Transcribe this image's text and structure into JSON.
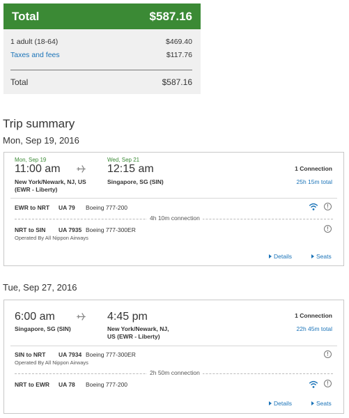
{
  "price": {
    "total_label": "Total",
    "total_amount": "$587.16",
    "passenger_label": "1 adult (18-64)",
    "passenger_amount": "$469.40",
    "taxes_label": "Taxes and fees",
    "taxes_amount": "$117.76",
    "summary_total_label": "Total",
    "summary_total_amount": "$587.16"
  },
  "trip_title": "Trip summary",
  "outbound": {
    "date_heading": "Mon, Sep 19, 2016",
    "depart_date": "Mon, Sep 19",
    "depart_time": "11:00 am",
    "depart_place1": "New York/Newark, NJ, US",
    "depart_place2": "(EWR - Liberty)",
    "arrive_date": "Wed, Sep 21",
    "arrive_time": "12:15 am",
    "arrive_place1": "Singapore, SG (SIN)",
    "connections": "1 Connection",
    "total_time": "25h 15m total",
    "segments": [
      {
        "route": "EWR to NRT",
        "flight": "UA 79",
        "aircraft": "Boeing 777-200",
        "operated": ""
      },
      {
        "route": "NRT to SIN",
        "flight": "UA 7935",
        "aircraft": "Boeing 777-300ER",
        "operated": "Operated By All Nippon Airways"
      }
    ],
    "layover": "4h 10m connection",
    "details_label": "Details",
    "seats_label": "Seats"
  },
  "return": {
    "date_heading": "Tue, Sep 27, 2016",
    "depart_time": "6:00 am",
    "depart_place1": "Singapore, SG (SIN)",
    "arrive_time": "4:45 pm",
    "arrive_place1": "New York/Newark, NJ,",
    "arrive_place2": "US (EWR - Liberty)",
    "connections": "1 Connection",
    "total_time": "22h 45m total",
    "segments": [
      {
        "route": "SIN to NRT",
        "flight": "UA 7934",
        "aircraft": "Boeing 777-300ER",
        "operated": "Operated By All Nippon Airways"
      },
      {
        "route": "NRT to EWR",
        "flight": "UA 78",
        "aircraft": "Boeing 777-200",
        "operated": ""
      }
    ],
    "layover": "2h 50m connection",
    "details_label": "Details",
    "seats_label": "Seats"
  },
  "icons": {
    "plane": "airplane-icon",
    "wifi": "wifi-icon",
    "info": "info-icon",
    "info_glyph": "!"
  },
  "colors": {
    "green": "#3b8a35",
    "link_blue": "#1a73b8"
  }
}
